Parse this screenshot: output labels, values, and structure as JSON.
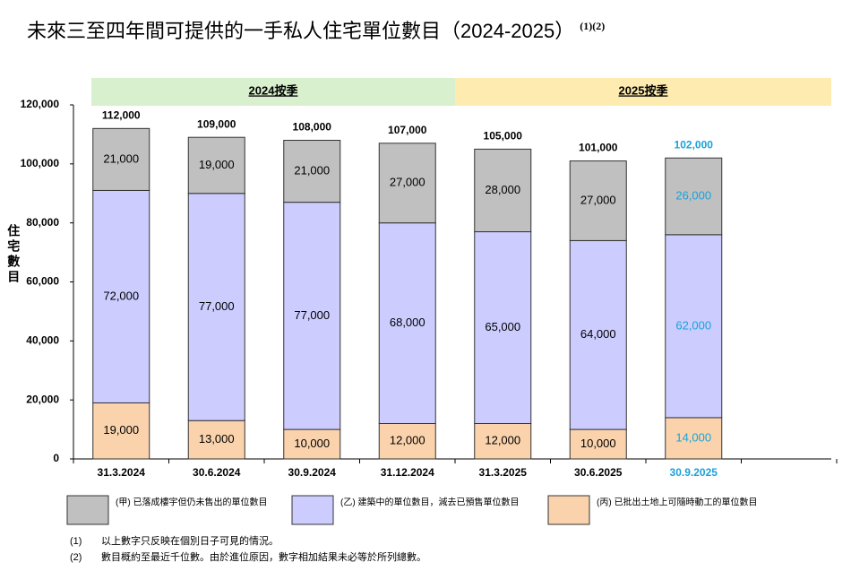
{
  "chart_data": {
    "type": "stacked-bar",
    "title": "未來三至四年間可提供的一手私人住宅單位數目（2024-2025）",
    "title_note": "(1)(2)",
    "y_label": "住宅數目",
    "categories": [
      "31.3.2024",
      "30.6.2024",
      "30.9.2024",
      "31.12.2024",
      "31.3.2025",
      "30.6.2025",
      "30.9.2025"
    ],
    "category_label_colors": [
      "#000000",
      "#000000",
      "#000000",
      "#000000",
      "#000000",
      "#000000",
      "#1ba1d8"
    ],
    "periods": [
      {
        "label": "2024按季",
        "span": 4,
        "color": "#d9f0cf"
      },
      {
        "label": "2025按季",
        "span": 3,
        "color": "#fdebb0"
      }
    ],
    "series": [
      {
        "name": "(丙) 已批出土地上可隨時動工的單位數目",
        "color": "#fad3ad",
        "values": [
          19000,
          13000,
          10000,
          12000,
          12000,
          10000,
          14000
        ],
        "value_labels": [
          "19,000",
          "13,000",
          "10,000",
          "12,000",
          "12,000",
          "10,000",
          "14,000"
        ]
      },
      {
        "name": "(乙) 建築中的單位數目，減去已預售單位數目",
        "color": "#ccccff",
        "values": [
          72000,
          77000,
          77000,
          68000,
          65000,
          64000,
          62000
        ],
        "value_labels": [
          "72,000",
          "77,000",
          "77,000",
          "68,000",
          "65,000",
          "64,000",
          "62,000"
        ]
      },
      {
        "name": "(甲) 已落成樓宇但仍未售出的單位數目",
        "color": "#c0c0c0",
        "values": [
          21000,
          19000,
          21000,
          27000,
          28000,
          27000,
          26000
        ],
        "value_labels": [
          "21,000",
          "19,000",
          "21,000",
          "27,000",
          "28,000",
          "27,000",
          "26,000"
        ]
      }
    ],
    "totals": [
      112000,
      109000,
      108000,
      107000,
      105000,
      101000,
      102000
    ],
    "total_labels": [
      "112,000",
      "109,000",
      "108,000",
      "107,000",
      "105,000",
      "101,000",
      "102,000"
    ],
    "ylim": [
      0,
      120000
    ],
    "yticks": [
      0,
      {
        "value": 20000,
        "label": "20,000"
      },
      {
        "value": 40000,
        "label": "40,000"
      },
      {
        "value": 60000,
        "label": "60,000"
      },
      {
        "value": 80000,
        "label": "80,000"
      },
      {
        "value": 100000,
        "label": "100,000"
      },
      {
        "value": 120000,
        "label": "120,000"
      }
    ],
    "notes": [
      {
        "marker": "(1)",
        "text": "以上數字只反映在個別日子可見的情況。"
      },
      {
        "marker": "(2)",
        "text": "數目概約至最近千位數。由於進位原因，數字相加結果未必等於所列總數。"
      }
    ]
  }
}
